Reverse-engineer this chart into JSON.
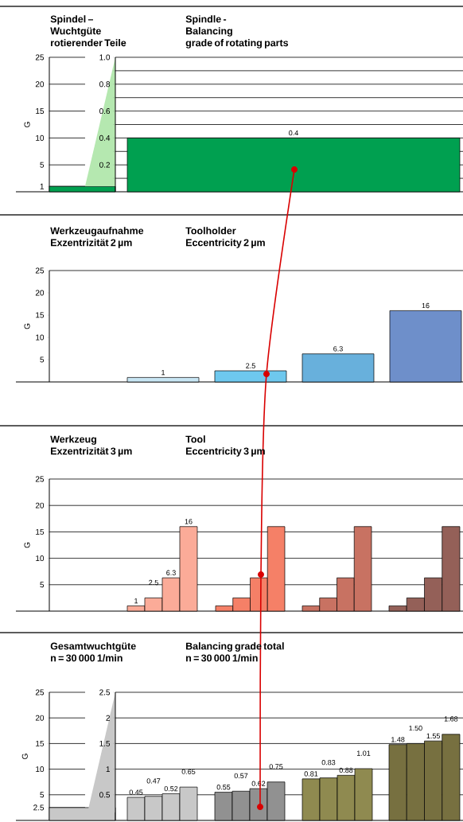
{
  "chart_data": [
    {
      "type": "bar",
      "title": "Spindel – Wuchtgüte rotierender Teile",
      "subtitle": "Spindle - Balancing grade of rotating parts",
      "ylabel": "G",
      "categories": [
        null,
        null
      ],
      "series": [
        {
          "color": "#00a050",
          "values": [
            1,
            null
          ]
        },
        {
          "color": "#00a050",
          "axis": "y2",
          "values": [
            null,
            0.4
          ],
          "value_labels": [
            null,
            "0.4"
          ]
        }
      ],
      "ylim": [
        0,
        25
      ],
      "yticks": [
        1,
        5,
        10,
        15,
        20,
        25
      ],
      "y2lim": [
        0,
        1.0
      ],
      "y2ticks": [
        {
          "value": 0.1,
          "label": null
        },
        0.2,
        {
          "value": 0.3,
          "label": null
        },
        0.4,
        {
          "value": 0.5,
          "label": null
        },
        0.6,
        {
          "value": 0.7,
          "label": null
        },
        0.8,
        {
          "value": 0.9,
          "label": null
        },
        {
          "value": 1.0,
          "label": "1.0"
        }
      ],
      "grid": true
    },
    {
      "type": "bar",
      "title": "Werkzeugaufnahme Exzentrizität 2 µm",
      "subtitle": "Toolholder Eccentricity 2 µm",
      "ylabel": "G",
      "categories": [
        null,
        null,
        null,
        null
      ],
      "values": [
        1,
        2.5,
        6.3,
        16
      ],
      "colors": [
        "#c8e6f4",
        "#6ec8ee",
        "#68b0dc",
        "#6e8fca"
      ],
      "data_labels": true,
      "ylim": [
        0,
        25
      ],
      "yticks": [
        5,
        10,
        15,
        20,
        25
      ]
    },
    {
      "type": "bar",
      "title": "Werkzeug Exzentrizität 3 µm",
      "subtitle": "Tool Eccentricity 3 µm",
      "ylabel": "G",
      "categories": [
        null,
        null,
        null,
        null
      ],
      "series": [
        {
          "colors": [
            "#fbab98",
            "#f58067",
            "#c87262",
            "#946058"
          ],
          "values": [
            1,
            1,
            1,
            1
          ],
          "value_labels": [
            "1",
            null,
            null,
            null
          ]
        },
        {
          "colors": [
            "#fbab98",
            "#f58067",
            "#c87262",
            "#946058"
          ],
          "values": [
            2.5,
            2.5,
            2.5,
            2.5
          ],
          "value_labels": [
            "2.5",
            null,
            null,
            null
          ]
        },
        {
          "colors": [
            "#fbab98",
            "#f58067",
            "#c87262",
            "#946058"
          ],
          "values": [
            6.3,
            6.3,
            6.3,
            6.3
          ],
          "value_labels": [
            "6.3",
            null,
            null,
            null
          ]
        },
        {
          "colors": [
            "#fbab98",
            "#f58067",
            "#c87262",
            "#946058"
          ],
          "values": [
            16,
            16,
            16,
            16
          ],
          "value_labels": [
            "16",
            null,
            null,
            null
          ]
        }
      ],
      "ylim": [
        0,
        25
      ],
      "yticks": [
        5,
        10,
        15,
        20,
        25
      ],
      "grid": true
    },
    {
      "type": "bar",
      "title": "Gesamtwuchtgüte n = 30 000 1/min",
      "subtitle": "Balancing grade total n = 30 000 1/min",
      "ylabel": "G",
      "categories": [
        null,
        null,
        null,
        null,
        null
      ],
      "series": [
        {
          "color": "#c8c8c8",
          "values": [
            2.5,
            null,
            null,
            null,
            null
          ]
        },
        {
          "axis": "y2",
          "colors": [
            "#c8c8c8",
            "#c8c8c8",
            "#919191",
            "#8f8a50",
            "#777040"
          ],
          "values": [
            null,
            0.45,
            0.55,
            0.81,
            1.48
          ],
          "value_labels": [
            null,
            "0.45",
            "0.55",
            "0.81",
            "1.48"
          ]
        },
        {
          "axis": "y2",
          "colors": [
            "#c8c8c8",
            "#c8c8c8",
            "#919191",
            "#8f8a50",
            "#777040"
          ],
          "values": [
            null,
            0.47,
            0.57,
            0.83,
            1.5
          ],
          "value_labels": [
            null,
            "0.47",
            "0.57",
            "0.83",
            "1.50"
          ]
        },
        {
          "axis": "y2",
          "colors": [
            "#c8c8c8",
            "#c8c8c8",
            "#919191",
            "#8f8a50",
            "#777040"
          ],
          "values": [
            null,
            0.52,
            0.62,
            0.88,
            1.55
          ],
          "value_labels": [
            null,
            "0.52",
            "0.62",
            "0.88",
            "1.55"
          ]
        },
        {
          "axis": "y2",
          "colors": [
            "#c8c8c8",
            "#c8c8c8",
            "#919191",
            "#8f8a50",
            "#777040"
          ],
          "values": [
            null,
            0.65,
            0.75,
            1.01,
            1.68
          ],
          "value_labels": [
            null,
            "0.65",
            "0.75",
            "1.01",
            "1.68"
          ]
        }
      ],
      "ylim": [
        0,
        25
      ],
      "yticks": [
        2.5,
        5,
        10,
        15,
        20,
        25
      ],
      "y2lim": [
        0,
        2.5
      ],
      "y2ticks": [
        0.5,
        1,
        1.5,
        2,
        2.5
      ],
      "grid": true
    }
  ]
}
